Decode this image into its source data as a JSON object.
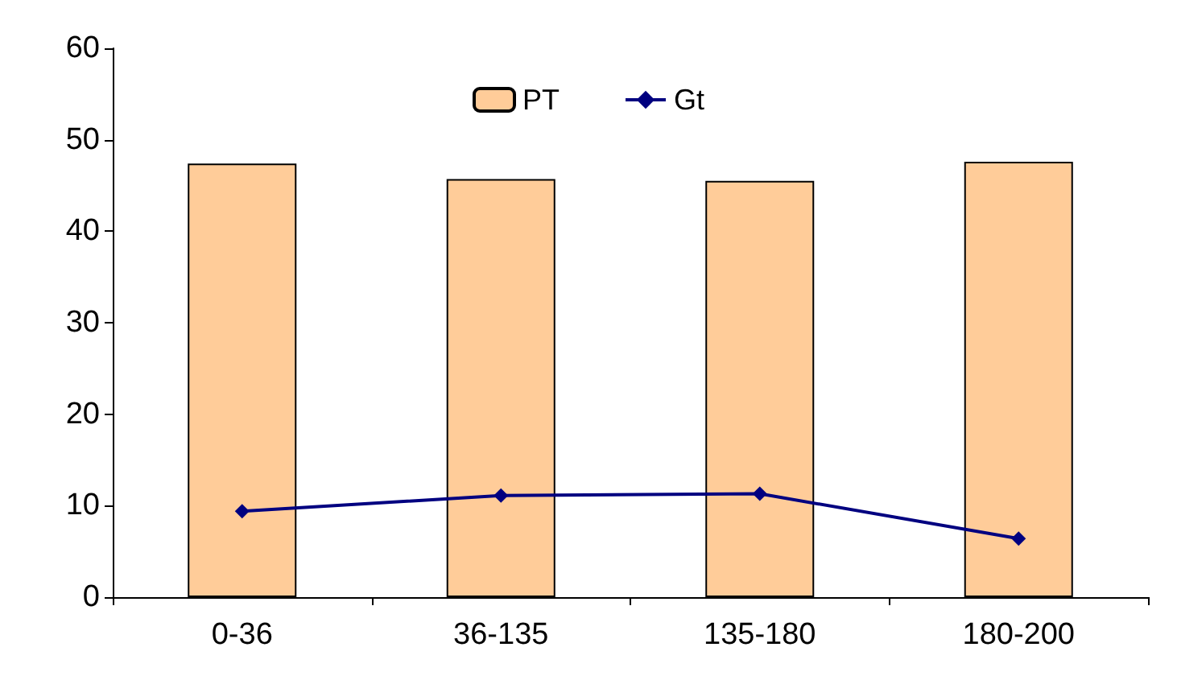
{
  "chart_data": {
    "type": "bar",
    "categories": [
      "0-36",
      "36-135",
      "135-180",
      "180-200"
    ],
    "series": [
      {
        "name": "PT",
        "color": "#ffcc99",
        "values": [
          47.4,
          45.7,
          45.5,
          47.6
        ]
      },
      {
        "name": "Gt",
        "type": "line",
        "color": "#000080",
        "marker": "diamond",
        "values": [
          9.4,
          11.1,
          11.3,
          6.4
        ]
      }
    ],
    "ylim": [
      0,
      60
    ],
    "yticks": [
      0,
      10,
      20,
      30,
      40,
      50,
      60
    ],
    "legend": "top",
    "grid": false
  }
}
